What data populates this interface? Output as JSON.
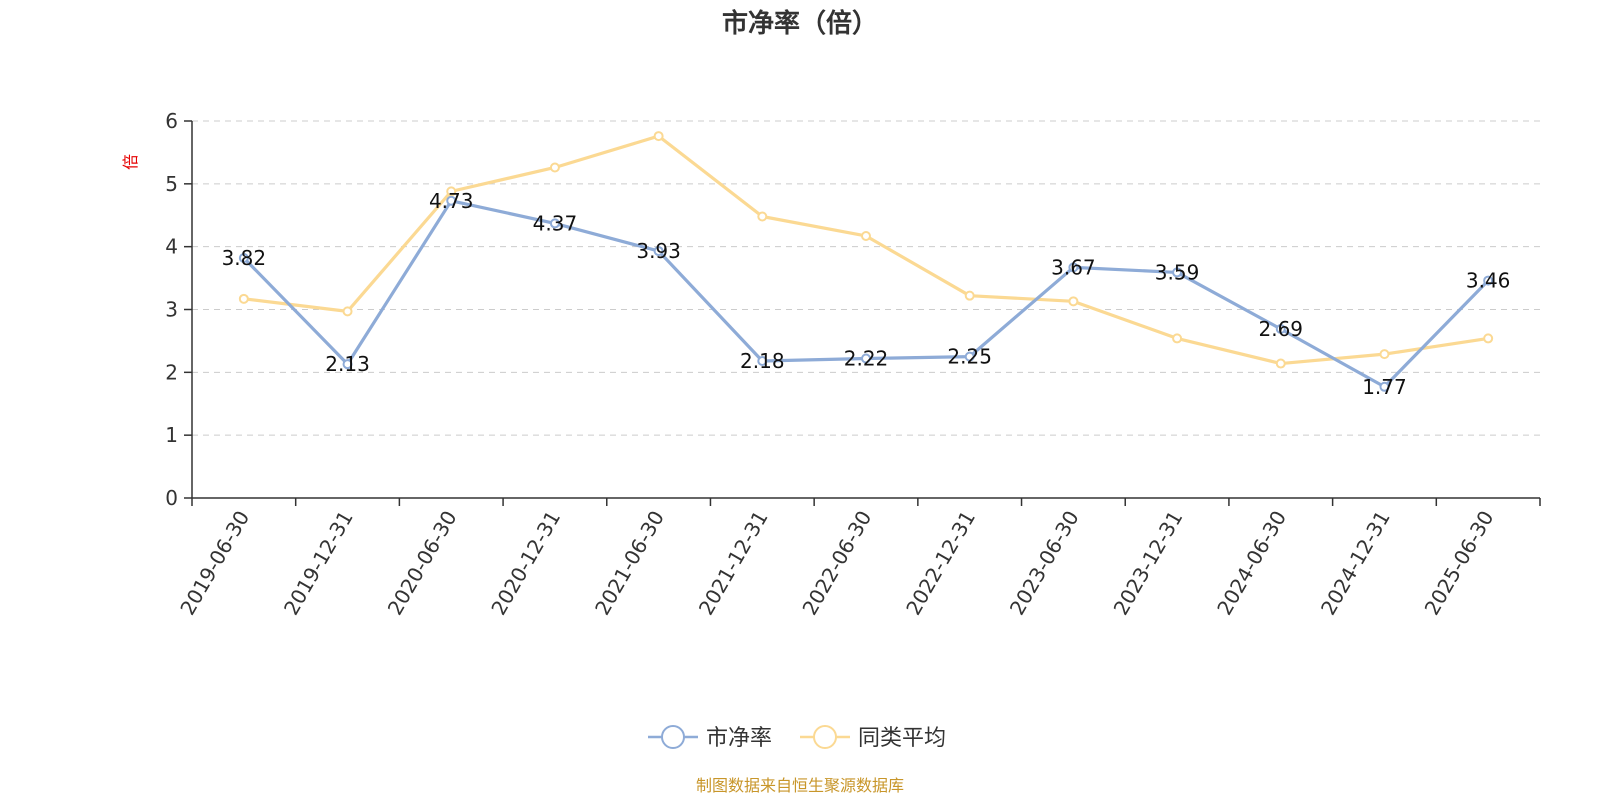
{
  "chart_data": {
    "type": "line",
    "title": "市净率（倍）",
    "ylabel": "倍",
    "xlabel": "",
    "categories": [
      "2019-06-30",
      "2019-12-31",
      "2020-06-30",
      "2020-12-31",
      "2021-06-30",
      "2021-12-31",
      "2022-06-30",
      "2022-12-31",
      "2023-06-30",
      "2023-12-31",
      "2024-06-30",
      "2024-12-31",
      "2025-06-30"
    ],
    "ylim": [
      0,
      6
    ],
    "yticks": [
      0,
      1,
      2,
      3,
      4,
      5,
      6
    ],
    "grid": true,
    "legend_position": "bottom",
    "series": [
      {
        "name": "市净率",
        "color": "#8eabd7",
        "values": [
          3.82,
          2.13,
          4.73,
          4.37,
          3.93,
          2.18,
          2.22,
          2.25,
          3.67,
          3.59,
          2.69,
          1.77,
          3.46
        ],
        "data_labels": [
          "3.82",
          "2.13",
          "4.73",
          "4.37",
          "3.93",
          "2.18",
          "2.22",
          "2.25",
          "3.67",
          "3.59",
          "2.69",
          "1.77",
          "3.46"
        ]
      },
      {
        "name": "同类平均",
        "color": "#fbd993",
        "values": [
          3.17,
          2.97,
          4.88,
          5.26,
          5.76,
          4.48,
          4.17,
          3.22,
          3.13,
          2.54,
          2.14,
          2.29,
          2.54
        ]
      }
    ],
    "source_note": "制图数据来自恒生聚源数据库"
  }
}
